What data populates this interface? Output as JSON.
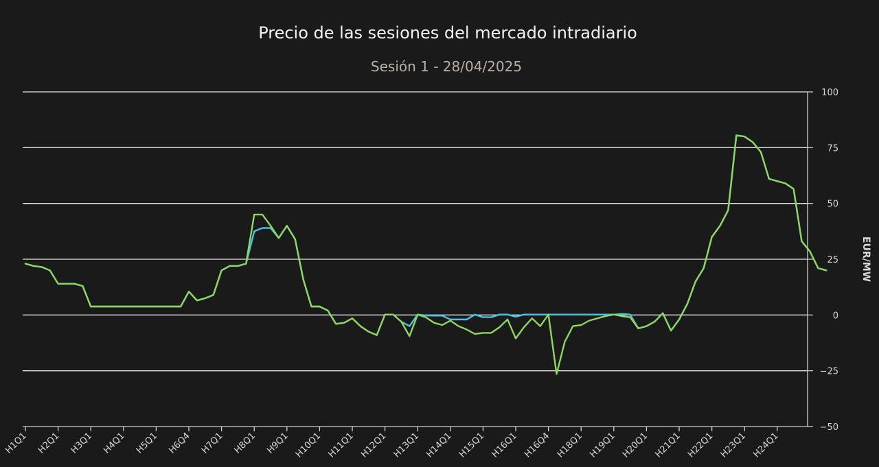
{
  "chart_data": {
    "type": "line",
    "title": "Precio de las sesiones del mercado intradiario",
    "subtitle": "Sesión 1 - 28/04/2025",
    "ylabel": "EUR/MW",
    "ylim": [
      -50,
      100
    ],
    "yticks": [
      -50,
      -25,
      0,
      25,
      50,
      75,
      100
    ],
    "y_axis_position": "right",
    "grid": true,
    "x_tick_labels": [
      "H1Q1",
      "H2Q1",
      "H3Q1",
      "H4Q1",
      "H5Q1",
      "H6Q4",
      "H7Q1",
      "H8Q1",
      "H9Q1",
      "H10Q1",
      "H11Q1",
      "H12Q1",
      "H13Q1",
      "H14Q1",
      "H15Q1",
      "H16Q1",
      "H16Q4",
      "H18Q1",
      "H19Q1",
      "H20Q1",
      "H21Q1",
      "H22Q1",
      "H23Q1",
      "H24Q1"
    ],
    "series": [
      {
        "color": "#41c4e8",
        "values": [
          23,
          22,
          21.5,
          20,
          14,
          14,
          14,
          13,
          3.8,
          3.8,
          3.8,
          3.8,
          3.8,
          3.8,
          3.8,
          3.8,
          3.8,
          3.8,
          3.8,
          3.8,
          10.5,
          6.5,
          7.5,
          9,
          20,
          22,
          22,
          23,
          37.5,
          39,
          39,
          34.5,
          40,
          34,
          16,
          3.8,
          3.8,
          2,
          -4,
          -3.5,
          -1.5,
          -5,
          -7.5,
          -9,
          0.2,
          0.2,
          -3,
          -5,
          0.2,
          -0.2,
          -0.3,
          -0.3,
          -2,
          -2,
          -2,
          0.2,
          -1,
          -1,
          0.2,
          0.2,
          -0.8,
          0.2,
          0.2,
          0.2,
          0.2,
          0.2,
          0.2,
          0.2,
          0.2,
          0.2,
          0.2,
          0.2,
          0.2,
          0.5,
          0.2,
          -6,
          -5,
          -3,
          0.8,
          -7,
          -2,
          5,
          15,
          21,
          35,
          40,
          47,
          80.5,
          80,
          77.5,
          73,
          61,
          60,
          59,
          56.5,
          33,
          28.5,
          21,
          20
        ]
      },
      {
        "color": "#8fd65b",
        "values": [
          23,
          22,
          21.5,
          20,
          14,
          14,
          14,
          13,
          3.8,
          3.8,
          3.8,
          3.8,
          3.8,
          3.8,
          3.8,
          3.8,
          3.8,
          3.8,
          3.8,
          3.8,
          10.5,
          6.5,
          7.5,
          9,
          20,
          22,
          22,
          23,
          45,
          45,
          40,
          34.5,
          40,
          34,
          16,
          3.8,
          3.8,
          2,
          -4,
          -3.5,
          -1.5,
          -5,
          -7.5,
          -9,
          0.2,
          0.2,
          -3,
          -9.5,
          0.2,
          -1,
          -3.5,
          -4.5,
          -2.5,
          -5,
          -6.5,
          -8.5,
          -8,
          -8,
          -5.5,
          -2,
          -10.5,
          -5.5,
          -1.5,
          -5,
          0.2,
          -26.5,
          -12,
          -5,
          -4.5,
          -2.5,
          -1.5,
          -0.5,
          0.2,
          -0.5,
          -1,
          -6,
          -5,
          -3,
          0.8,
          -7,
          -2,
          5,
          15,
          21,
          35,
          40,
          47,
          80.5,
          80,
          77.5,
          73,
          61,
          60,
          59,
          56.5,
          33,
          28.5,
          21,
          20
        ]
      }
    ]
  }
}
